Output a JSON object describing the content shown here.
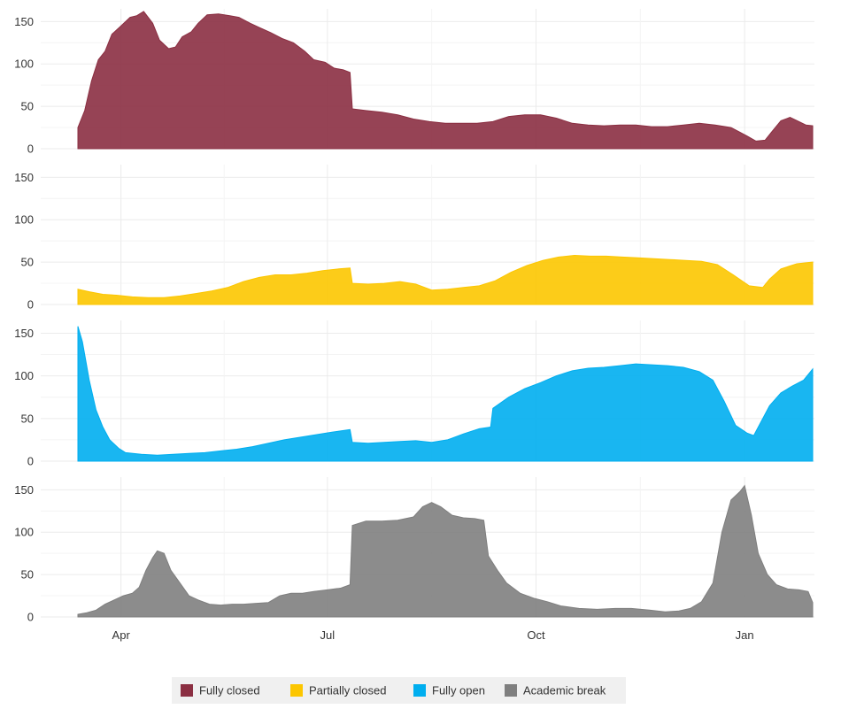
{
  "chart_data": {
    "type": "area",
    "layout": "small-multiples",
    "shared_x": true,
    "x_range": [
      "2020-03-13",
      "2021-01-31"
    ],
    "x_ticks": [
      {
        "date": "2020-04-01",
        "label": "Apr"
      },
      {
        "date": "2020-07-01",
        "label": "Jul"
      },
      {
        "date": "2020-10-01",
        "label": "Oct"
      },
      {
        "date": "2021-01-01",
        "label": "Jan"
      }
    ],
    "y_ticks": [
      0,
      50,
      100,
      150
    ],
    "ylim": [
      0,
      165
    ],
    "grid": true,
    "legend": {
      "position": "bottom",
      "items": [
        {
          "label": "Fully closed",
          "color": "#8b2f42"
        },
        {
          "label": "Partially closed",
          "color": "#fcc600"
        },
        {
          "label": "Fully open",
          "color": "#00aeef"
        },
        {
          "label": "Academic break",
          "color": "#7f7f7f"
        }
      ]
    },
    "series": [
      {
        "name": "Fully closed",
        "color": "#8b2f42",
        "points": [
          [
            "2020-03-13",
            25
          ],
          [
            "2020-03-16",
            45
          ],
          [
            "2020-03-19",
            80
          ],
          [
            "2020-03-22",
            105
          ],
          [
            "2020-03-25",
            115
          ],
          [
            "2020-03-28",
            135
          ],
          [
            "2020-04-01",
            145
          ],
          [
            "2020-04-05",
            155
          ],
          [
            "2020-04-08",
            157
          ],
          [
            "2020-04-11",
            162
          ],
          [
            "2020-04-15",
            148
          ],
          [
            "2020-04-18",
            128
          ],
          [
            "2020-04-22",
            118
          ],
          [
            "2020-04-25",
            120
          ],
          [
            "2020-04-28",
            132
          ],
          [
            "2020-05-02",
            138
          ],
          [
            "2020-05-05",
            148
          ],
          [
            "2020-05-09",
            158
          ],
          [
            "2020-05-14",
            159
          ],
          [
            "2020-05-19",
            157
          ],
          [
            "2020-05-23",
            155
          ],
          [
            "2020-05-28",
            148
          ],
          [
            "2020-06-01",
            143
          ],
          [
            "2020-06-06",
            137
          ],
          [
            "2020-06-11",
            130
          ],
          [
            "2020-06-16",
            125
          ],
          [
            "2020-06-21",
            115
          ],
          [
            "2020-06-25",
            105
          ],
          [
            "2020-06-30",
            102
          ],
          [
            "2020-07-04",
            95
          ],
          [
            "2020-07-08",
            93
          ],
          [
            "2020-07-11",
            90
          ],
          [
            "2020-07-12",
            47
          ],
          [
            "2020-07-18",
            45
          ],
          [
            "2020-07-25",
            43
          ],
          [
            "2020-08-01",
            40
          ],
          [
            "2020-08-08",
            35
          ],
          [
            "2020-08-15",
            32
          ],
          [
            "2020-08-22",
            30
          ],
          [
            "2020-08-29",
            30
          ],
          [
            "2020-09-05",
            30
          ],
          [
            "2020-09-12",
            32
          ],
          [
            "2020-09-19",
            38
          ],
          [
            "2020-09-26",
            40
          ],
          [
            "2020-10-03",
            40
          ],
          [
            "2020-10-10",
            36
          ],
          [
            "2020-10-17",
            30
          ],
          [
            "2020-10-24",
            28
          ],
          [
            "2020-10-31",
            27
          ],
          [
            "2020-11-07",
            28
          ],
          [
            "2020-11-14",
            28
          ],
          [
            "2020-11-21",
            26
          ],
          [
            "2020-11-28",
            26
          ],
          [
            "2020-12-05",
            28
          ],
          [
            "2020-12-12",
            30
          ],
          [
            "2020-12-19",
            28
          ],
          [
            "2020-12-26",
            25
          ],
          [
            "2021-01-02",
            15
          ],
          [
            "2021-01-06",
            9
          ],
          [
            "2021-01-10",
            10
          ],
          [
            "2021-01-13",
            20
          ],
          [
            "2021-01-17",
            33
          ],
          [
            "2021-01-21",
            37
          ],
          [
            "2021-01-25",
            32
          ],
          [
            "2021-01-28",
            28
          ],
          [
            "2021-01-31",
            27
          ]
        ]
      },
      {
        "name": "Partially closed",
        "color": "#fcc600",
        "points": [
          [
            "2020-03-13",
            18
          ],
          [
            "2020-03-18",
            15
          ],
          [
            "2020-03-24",
            12
          ],
          [
            "2020-03-30",
            11
          ],
          [
            "2020-04-06",
            9
          ],
          [
            "2020-04-13",
            8
          ],
          [
            "2020-04-20",
            8
          ],
          [
            "2020-04-27",
            10
          ],
          [
            "2020-05-04",
            13
          ],
          [
            "2020-05-11",
            16
          ],
          [
            "2020-05-18",
            20
          ],
          [
            "2020-05-25",
            27
          ],
          [
            "2020-06-01",
            32
          ],
          [
            "2020-06-08",
            35
          ],
          [
            "2020-06-15",
            35
          ],
          [
            "2020-06-22",
            37
          ],
          [
            "2020-06-29",
            40
          ],
          [
            "2020-07-06",
            42
          ],
          [
            "2020-07-11",
            43
          ],
          [
            "2020-07-12",
            25
          ],
          [
            "2020-07-19",
            24
          ],
          [
            "2020-07-26",
            25
          ],
          [
            "2020-08-02",
            27
          ],
          [
            "2020-08-09",
            24
          ],
          [
            "2020-08-16",
            17
          ],
          [
            "2020-08-23",
            18
          ],
          [
            "2020-08-30",
            20
          ],
          [
            "2020-09-06",
            22
          ],
          [
            "2020-09-13",
            28
          ],
          [
            "2020-09-20",
            38
          ],
          [
            "2020-09-27",
            46
          ],
          [
            "2020-10-04",
            52
          ],
          [
            "2020-10-11",
            56
          ],
          [
            "2020-10-18",
            58
          ],
          [
            "2020-10-25",
            57
          ],
          [
            "2020-11-01",
            57
          ],
          [
            "2020-11-08",
            56
          ],
          [
            "2020-11-15",
            55
          ],
          [
            "2020-11-22",
            54
          ],
          [
            "2020-11-29",
            53
          ],
          [
            "2020-12-06",
            52
          ],
          [
            "2020-12-13",
            51
          ],
          [
            "2020-12-20",
            47
          ],
          [
            "2020-12-27",
            35
          ],
          [
            "2021-01-03",
            22
          ],
          [
            "2021-01-09",
            20
          ],
          [
            "2021-01-12",
            30
          ],
          [
            "2021-01-17",
            42
          ],
          [
            "2021-01-24",
            48
          ],
          [
            "2021-01-31",
            50
          ]
        ]
      },
      {
        "name": "Fully open",
        "color": "#00aeef",
        "points": [
          [
            "2020-03-13",
            158
          ],
          [
            "2020-03-15",
            140
          ],
          [
            "2020-03-18",
            95
          ],
          [
            "2020-03-21",
            60
          ],
          [
            "2020-03-24",
            40
          ],
          [
            "2020-03-27",
            25
          ],
          [
            "2020-03-31",
            15
          ],
          [
            "2020-04-03",
            10
          ],
          [
            "2020-04-10",
            8
          ],
          [
            "2020-04-17",
            7
          ],
          [
            "2020-04-24",
            8
          ],
          [
            "2020-05-01",
            9
          ],
          [
            "2020-05-08",
            10
          ],
          [
            "2020-05-15",
            12
          ],
          [
            "2020-05-22",
            14
          ],
          [
            "2020-05-29",
            17
          ],
          [
            "2020-06-05",
            21
          ],
          [
            "2020-06-12",
            25
          ],
          [
            "2020-06-19",
            28
          ],
          [
            "2020-06-26",
            31
          ],
          [
            "2020-07-03",
            34
          ],
          [
            "2020-07-11",
            37
          ],
          [
            "2020-07-12",
            22
          ],
          [
            "2020-07-19",
            21
          ],
          [
            "2020-07-26",
            22
          ],
          [
            "2020-08-02",
            23
          ],
          [
            "2020-08-09",
            24
          ],
          [
            "2020-08-16",
            22
          ],
          [
            "2020-08-23",
            25
          ],
          [
            "2020-08-30",
            32
          ],
          [
            "2020-09-06",
            38
          ],
          [
            "2020-09-11",
            40
          ],
          [
            "2020-09-12",
            62
          ],
          [
            "2020-09-19",
            75
          ],
          [
            "2020-09-26",
            85
          ],
          [
            "2020-10-03",
            92
          ],
          [
            "2020-10-10",
            100
          ],
          [
            "2020-10-17",
            106
          ],
          [
            "2020-10-24",
            109
          ],
          [
            "2020-10-31",
            110
          ],
          [
            "2020-11-07",
            112
          ],
          [
            "2020-11-14",
            114
          ],
          [
            "2020-11-21",
            113
          ],
          [
            "2020-11-28",
            112
          ],
          [
            "2020-12-05",
            110
          ],
          [
            "2020-12-12",
            105
          ],
          [
            "2020-12-18",
            95
          ],
          [
            "2020-12-23",
            70
          ],
          [
            "2020-12-28",
            42
          ],
          [
            "2021-01-02",
            33
          ],
          [
            "2021-01-05",
            30
          ],
          [
            "2021-01-08",
            45
          ],
          [
            "2021-01-12",
            65
          ],
          [
            "2021-01-17",
            80
          ],
          [
            "2021-01-22",
            88
          ],
          [
            "2021-01-27",
            95
          ],
          [
            "2021-01-31",
            108
          ]
        ]
      },
      {
        "name": "Academic break",
        "color": "#7f7f7f",
        "points": [
          [
            "2020-03-13",
            3
          ],
          [
            "2020-03-17",
            5
          ],
          [
            "2020-03-21",
            8
          ],
          [
            "2020-03-25",
            15
          ],
          [
            "2020-03-29",
            20
          ],
          [
            "2020-04-02",
            25
          ],
          [
            "2020-04-06",
            28
          ],
          [
            "2020-04-09",
            35
          ],
          [
            "2020-04-12",
            55
          ],
          [
            "2020-04-15",
            70
          ],
          [
            "2020-04-17",
            78
          ],
          [
            "2020-04-20",
            75
          ],
          [
            "2020-04-23",
            55
          ],
          [
            "2020-04-27",
            40
          ],
          [
            "2020-05-01",
            25
          ],
          [
            "2020-05-05",
            20
          ],
          [
            "2020-05-10",
            15
          ],
          [
            "2020-05-15",
            14
          ],
          [
            "2020-05-20",
            15
          ],
          [
            "2020-05-25",
            15
          ],
          [
            "2020-05-30",
            16
          ],
          [
            "2020-06-05",
            17
          ],
          [
            "2020-06-10",
            25
          ],
          [
            "2020-06-15",
            28
          ],
          [
            "2020-06-20",
            28
          ],
          [
            "2020-06-25",
            30
          ],
          [
            "2020-07-01",
            32
          ],
          [
            "2020-07-07",
            34
          ],
          [
            "2020-07-11",
            38
          ],
          [
            "2020-07-12",
            108
          ],
          [
            "2020-07-18",
            113
          ],
          [
            "2020-07-25",
            113
          ],
          [
            "2020-08-01",
            114
          ],
          [
            "2020-08-08",
            118
          ],
          [
            "2020-08-12",
            130
          ],
          [
            "2020-08-16",
            135
          ],
          [
            "2020-08-20",
            130
          ],
          [
            "2020-08-25",
            120
          ],
          [
            "2020-08-30",
            117
          ],
          [
            "2020-09-04",
            116
          ],
          [
            "2020-09-08",
            114
          ],
          [
            "2020-09-10",
            72
          ],
          [
            "2020-09-14",
            55
          ],
          [
            "2020-09-18",
            40
          ],
          [
            "2020-09-24",
            28
          ],
          [
            "2020-09-30",
            22
          ],
          [
            "2020-10-06",
            18
          ],
          [
            "2020-10-12",
            13
          ],
          [
            "2020-10-20",
            10
          ],
          [
            "2020-10-28",
            9
          ],
          [
            "2020-11-05",
            10
          ],
          [
            "2020-11-12",
            10
          ],
          [
            "2020-11-20",
            8
          ],
          [
            "2020-11-27",
            6
          ],
          [
            "2020-12-03",
            7
          ],
          [
            "2020-12-08",
            10
          ],
          [
            "2020-12-13",
            18
          ],
          [
            "2020-12-18",
            40
          ],
          [
            "2020-12-22",
            100
          ],
          [
            "2020-12-26",
            138
          ],
          [
            "2020-12-30",
            148
          ],
          [
            "2021-01-01",
            155
          ],
          [
            "2021-01-04",
            120
          ],
          [
            "2021-01-07",
            75
          ],
          [
            "2021-01-11",
            50
          ],
          [
            "2021-01-15",
            38
          ],
          [
            "2021-01-20",
            33
          ],
          [
            "2021-01-25",
            32
          ],
          [
            "2021-01-29",
            30
          ],
          [
            "2021-01-31",
            17
          ]
        ]
      }
    ]
  }
}
